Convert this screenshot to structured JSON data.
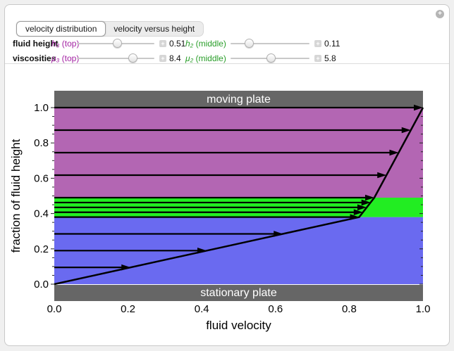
{
  "app": {
    "more_button_glyph": "+"
  },
  "tabs": {
    "items": [
      {
        "label": "velocity distribution",
        "selected": true
      },
      {
        "label": "velocity versus height",
        "selected": false
      }
    ]
  },
  "controls": {
    "plus_glyph": "+",
    "rows": [
      {
        "group_label": "fluid height",
        "sliders": [
          {
            "var": "h₃",
            "suffix": " (top)",
            "color": "#a322a3",
            "value": "0.51",
            "pos": 0.52
          },
          {
            "var": "h₂",
            "suffix": " (middle)",
            "color": "#2a9e2a",
            "value": "0.11",
            "pos": 0.24
          }
        ]
      },
      {
        "group_label": "viscosities",
        "sliders": [
          {
            "var": "μ₃",
            "suffix": " (top)",
            "color": "#a322a3",
            "value": "8.4",
            "pos": 0.72
          },
          {
            "var": "μ₂",
            "suffix": " (middle)",
            "color": "#2a9e2a",
            "value": "5.8",
            "pos": 0.51
          }
        ]
      }
    ]
  },
  "chart_data": {
    "type": "area",
    "title": "",
    "xlabel": "fluid velocity",
    "ylabel": "fraction of fluid height",
    "xlim": [
      0,
      1
    ],
    "ylim": [
      0,
      1
    ],
    "xticks": [
      0,
      0.2,
      0.4,
      0.6,
      0.8,
      1
    ],
    "yticks": [
      0,
      0.2,
      0.4,
      0.6,
      0.8,
      1
    ],
    "minor_tick_step": 0.05,
    "grid": false,
    "plates": {
      "top_label": "moving plate",
      "bottom_label": "stationary plate",
      "color": "#666666",
      "text_color": "#ffffff"
    },
    "layers": [
      {
        "name": "bottom fluid",
        "color": "#6a6af0",
        "from": 0.0,
        "to": 0.38
      },
      {
        "name": "middle fluid",
        "color": "#22ed22",
        "from": 0.38,
        "to": 0.49
      },
      {
        "name": "top fluid",
        "color": "#b366b3",
        "from": 0.49,
        "to": 1.0
      }
    ],
    "profile": [
      [
        0,
        0
      ],
      [
        0.827,
        0.38
      ],
      [
        0.868,
        0.49
      ],
      [
        1.0,
        1.0
      ]
    ],
    "arrows": [
      {
        "y": 0.095,
        "v": 0.207
      },
      {
        "y": 0.19,
        "v": 0.413
      },
      {
        "y": 0.285,
        "v": 0.62
      },
      {
        "y": 0.38,
        "v": 0.827
      },
      {
        "y": 0.4075,
        "v": 0.837
      },
      {
        "y": 0.435,
        "v": 0.847
      },
      {
        "y": 0.4625,
        "v": 0.858
      },
      {
        "y": 0.49,
        "v": 0.868
      },
      {
        "y": 0.6175,
        "v": 0.901
      },
      {
        "y": 0.745,
        "v": 0.934
      },
      {
        "y": 0.8725,
        "v": 0.967
      },
      {
        "y": 1.0,
        "v": 1.0
      }
    ]
  }
}
